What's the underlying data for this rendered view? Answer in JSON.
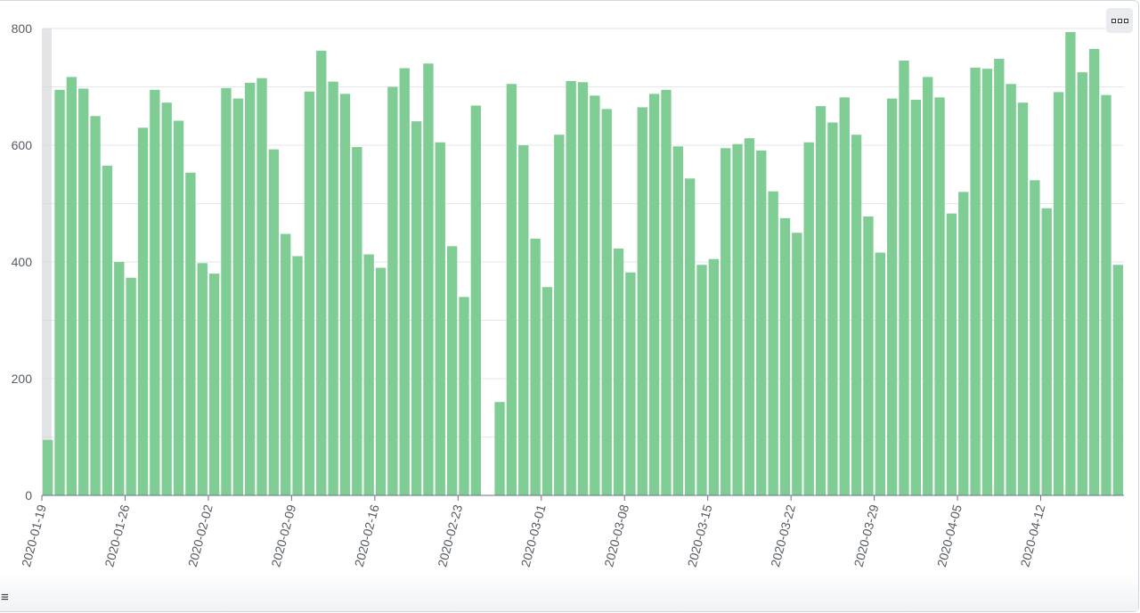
{
  "icons": {
    "options_menu": "dots-menu-icon",
    "list_menu": "hamburger-icon"
  },
  "colors": {
    "bar": "#7fcd94",
    "grid": "#e3e6ea",
    "axis": "#6b7280",
    "brush": "#d6d8dc"
  },
  "ui": {
    "hamburger_glyph": "≡"
  },
  "chart_data": {
    "type": "bar",
    "title": "",
    "xlabel": "",
    "ylabel": "",
    "ylim": [
      0,
      800
    ],
    "yticks": [
      0,
      200,
      400,
      600,
      800
    ],
    "grid": true,
    "legend": "none",
    "xtick_labels": [
      "2020-01-19",
      "2020-01-26",
      "2020-02-02",
      "2020-02-09",
      "2020-02-16",
      "2020-02-23",
      "2020-03-01",
      "2020-03-08",
      "2020-03-15",
      "2020-03-22",
      "2020-03-29",
      "2020-04-05",
      "2020-04-12"
    ],
    "categories": [
      "2020-01-19",
      "2020-01-20",
      "2020-01-21",
      "2020-01-22",
      "2020-01-23",
      "2020-01-24",
      "2020-01-25",
      "2020-01-26",
      "2020-01-27",
      "2020-01-28",
      "2020-01-29",
      "2020-01-30",
      "2020-01-31",
      "2020-02-01",
      "2020-02-02",
      "2020-02-03",
      "2020-02-04",
      "2020-02-05",
      "2020-02-06",
      "2020-02-07",
      "2020-02-08",
      "2020-02-09",
      "2020-02-10",
      "2020-02-11",
      "2020-02-12",
      "2020-02-13",
      "2020-02-14",
      "2020-02-15",
      "2020-02-16",
      "2020-02-17",
      "2020-02-18",
      "2020-02-19",
      "2020-02-20",
      "2020-02-21",
      "2020-02-22",
      "2020-02-23",
      "2020-02-24",
      "2020-02-25",
      "2020-02-26",
      "2020-02-27",
      "2020-02-28",
      "2020-02-29",
      "2020-03-01",
      "2020-03-02",
      "2020-03-03",
      "2020-03-04",
      "2020-03-05",
      "2020-03-06",
      "2020-03-07",
      "2020-03-08",
      "2020-03-09",
      "2020-03-10",
      "2020-03-11",
      "2020-03-12",
      "2020-03-13",
      "2020-03-14",
      "2020-03-15",
      "2020-03-16",
      "2020-03-17",
      "2020-03-18",
      "2020-03-19",
      "2020-03-20",
      "2020-03-21",
      "2020-03-22",
      "2020-03-23",
      "2020-03-24",
      "2020-03-25",
      "2020-03-26",
      "2020-03-27",
      "2020-03-28",
      "2020-03-29",
      "2020-03-30",
      "2020-03-31",
      "2020-04-01",
      "2020-04-02",
      "2020-04-03",
      "2020-04-04",
      "2020-04-05",
      "2020-04-06",
      "2020-04-07",
      "2020-04-08",
      "2020-04-09",
      "2020-04-10",
      "2020-04-11",
      "2020-04-12",
      "2020-04-13",
      "2020-04-14",
      "2020-04-15",
      "2020-04-16",
      "2020-04-17",
      "2020-04-18"
    ],
    "values": [
      95,
      695,
      717,
      697,
      650,
      565,
      400,
      373,
      630,
      695,
      673,
      642,
      553,
      398,
      380,
      698,
      680,
      707,
      715,
      593,
      448,
      410,
      692,
      762,
      709,
      688,
      597,
      413,
      390,
      700,
      732,
      641,
      740,
      605,
      427,
      340,
      668,
      0,
      160,
      705,
      600,
      440,
      357,
      618,
      710,
      708,
      685,
      662,
      423,
      382,
      665,
      688,
      695,
      598,
      543,
      395,
      405,
      595,
      602,
      612,
      591,
      521,
      475,
      450,
      605,
      667,
      639,
      682,
      618,
      478,
      416,
      680,
      745,
      678,
      717,
      682,
      483,
      520,
      733,
      731,
      748,
      705,
      673,
      540,
      492,
      691,
      794,
      725,
      765,
      686,
      395
    ]
  }
}
